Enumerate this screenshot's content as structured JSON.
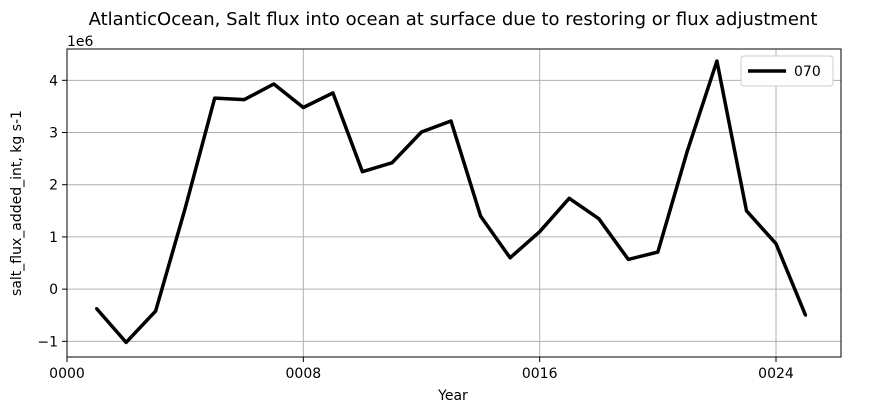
{
  "chart_data": {
    "type": "line",
    "title": "AtlanticOcean, Salt flux into ocean at surface due to restoring or flux adjustment",
    "xlabel": "Year",
    "ylabel": "salt_flux_added_int, kg s-1",
    "y_offset_label": "1e6",
    "x_ticks": [
      0,
      8,
      16,
      24
    ],
    "x_tick_labels": [
      "0000",
      "0008",
      "0016",
      "0024"
    ],
    "y_ticks": [
      -1,
      0,
      1,
      2,
      3,
      4
    ],
    "y_tick_labels": [
      "−1",
      "0",
      "1",
      "2",
      "3",
      "4"
    ],
    "xlim": [
      0,
      26.2
    ],
    "ylim": [
      -1.3,
      4.6
    ],
    "grid": true,
    "legend_position": "top-right",
    "series": [
      {
        "name": "070",
        "color": "#000000",
        "x": [
          1,
          2,
          3,
          4,
          5,
          6,
          7,
          8,
          9,
          10,
          11,
          12,
          13,
          14,
          15,
          16,
          17,
          18,
          19,
          20,
          21,
          22,
          23,
          24,
          25
        ],
        "values": [
          -0.37,
          -1.02,
          -0.42,
          1.55,
          3.66,
          3.63,
          3.93,
          3.48,
          3.76,
          2.25,
          2.42,
          3.01,
          3.22,
          1.4,
          0.6,
          1.1,
          1.74,
          1.35,
          0.57,
          0.71,
          2.65,
          4.37,
          1.5,
          0.87,
          -0.5
        ]
      }
    ]
  }
}
